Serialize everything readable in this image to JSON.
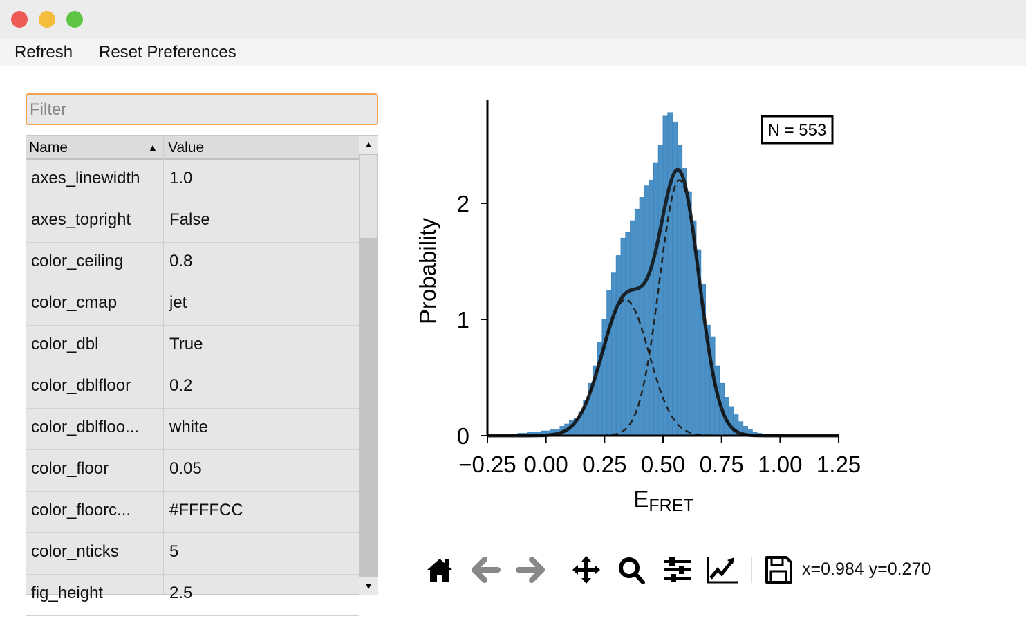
{
  "window": {
    "controls": [
      "close",
      "minimize",
      "zoom"
    ],
    "colors": {
      "close": "#ee5b55",
      "minimize": "#f4bd3b",
      "zoom": "#5fc546"
    }
  },
  "menu": {
    "refresh": "Refresh",
    "reset_preferences": "Reset Preferences"
  },
  "filter": {
    "placeholder": "Filter",
    "value": ""
  },
  "table": {
    "headers": {
      "name": "Name",
      "value": "Value",
      "sort_icon": "triangle-up"
    },
    "rows": [
      {
        "name": "axes_linewidth",
        "value": "1.0"
      },
      {
        "name": "axes_topright",
        "value": "False"
      },
      {
        "name": "color_ceiling",
        "value": "0.8"
      },
      {
        "name": "color_cmap",
        "value": "jet"
      },
      {
        "name": "color_dbl",
        "value": "True"
      },
      {
        "name": "color_dblfloor",
        "value": "0.2"
      },
      {
        "name": "color_dblfloo...",
        "value": "white"
      },
      {
        "name": "color_floor",
        "value": "0.05"
      },
      {
        "name": "color_floorc...",
        "value": "#FFFFCC"
      },
      {
        "name": "color_nticks",
        "value": "5"
      },
      {
        "name": "fig_height",
        "value": "2.5"
      }
    ]
  },
  "toolbar": {
    "icons": [
      "home-icon",
      "back-icon",
      "forward-icon",
      "pan-icon",
      "zoom-icon",
      "configure-subplots-icon",
      "edit-axis-icon",
      "save-icon"
    ],
    "coords": "x=0.984 y=0.270"
  },
  "chart_data": {
    "type": "bar",
    "xlabel_main": "E",
    "xlabel_sub": "FRET",
    "ylabel": "Probability",
    "annotation": "N = 553",
    "xlim": [
      -0.25,
      1.25
    ],
    "ylim": [
      0,
      2.9
    ],
    "xticks": [
      "−0.25",
      "0.00",
      "0.25",
      "0.50",
      "0.75",
      "1.00",
      "1.25"
    ],
    "xtick_values": [
      -0.25,
      0,
      0.25,
      0.5,
      0.75,
      1.0,
      1.25
    ],
    "yticks": [
      "0",
      "1",
      "2"
    ],
    "ytick_values": [
      0,
      1,
      2
    ],
    "grid": false,
    "histogram": {
      "color": "#4b91c5",
      "bin_width": 0.02,
      "bin_starts": [
        -0.14,
        -0.12,
        -0.1,
        -0.08,
        -0.06,
        -0.04,
        -0.02,
        0,
        0.02,
        0.04,
        0.06,
        0.08,
        0.1,
        0.12,
        0.14,
        0.16,
        0.18,
        0.2,
        0.22,
        0.24,
        0.26,
        0.28,
        0.3,
        0.32,
        0.34,
        0.36,
        0.38,
        0.4,
        0.42,
        0.44,
        0.46,
        0.48,
        0.5,
        0.52,
        0.54,
        0.56,
        0.58,
        0.6,
        0.62,
        0.64,
        0.66,
        0.68,
        0.7,
        0.72,
        0.74,
        0.76,
        0.78,
        0.8,
        0.82,
        0.84,
        0.86,
        0.88,
        0.9,
        0.92,
        0.94,
        0.96,
        0.98,
        1.0,
        1.02,
        1.04
      ],
      "values": [
        0.01,
        0.02,
        0.02,
        0.03,
        0.03,
        0.03,
        0.04,
        0.04,
        0.05,
        0.05,
        0.08,
        0.1,
        0.13,
        0.15,
        0.2,
        0.3,
        0.45,
        0.6,
        0.8,
        1.0,
        1.25,
        1.4,
        1.55,
        1.7,
        1.75,
        1.85,
        1.95,
        2.05,
        2.15,
        2.2,
        2.35,
        2.5,
        2.75,
        2.78,
        2.7,
        2.5,
        2.3,
        2.1,
        1.85,
        1.6,
        1.3,
        0.95,
        0.85,
        0.6,
        0.45,
        0.33,
        0.25,
        0.18,
        0.12,
        0.08,
        0.05,
        0.03,
        0.02,
        0.01,
        0.01,
        0.01,
        0.01,
        0.005,
        0.005,
        0.005
      ]
    },
    "fit": {
      "total_color": "#111111",
      "components": [
        {
          "amplitude": 1.17,
          "mean": 0.34,
          "sigma": 0.1
        },
        {
          "amplitude": 2.2,
          "mean": 0.57,
          "sigma": 0.085
        }
      ]
    }
  }
}
